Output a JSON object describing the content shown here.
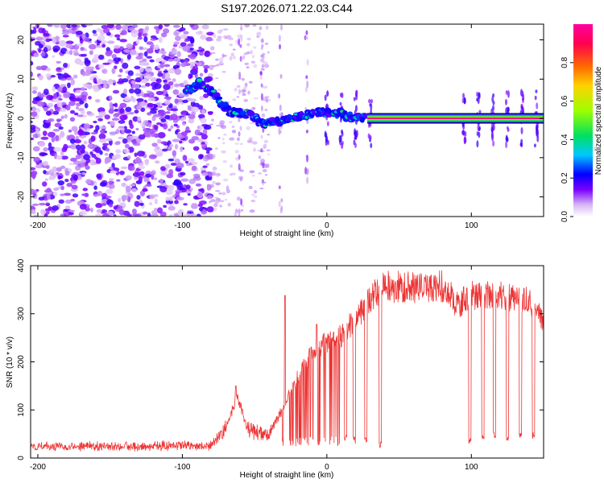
{
  "title": "S197.2026.071.22.03.C44",
  "chart_data": [
    {
      "type": "heatmap",
      "xlabel": "Height of straight line (km)",
      "ylabel": "Frequency (Hz)",
      "xlim": [
        -205,
        150
      ],
      "ylim": [
        -25,
        24
      ],
      "xticks": [
        -200,
        -100,
        0,
        100
      ],
      "yticks": [
        -20,
        -10,
        0,
        10,
        20
      ],
      "colorbar": {
        "label": "Normalized spectral amplitude",
        "range": [
          0,
          1
        ],
        "ticks": [
          "0.0",
          "0.2",
          "0.4",
          "0.6",
          "0.8"
        ],
        "colormap": [
          "#ffffff",
          "#d9b8f5",
          "#7b00ff",
          "#0000ff",
          "#00c8ff",
          "#00e060",
          "#9cff00",
          "#ffd200",
          "#ff6a00",
          "#ff0050",
          "#ff00a0"
        ]
      },
      "ridge": {
        "points": [
          {
            "x": -98,
            "y": 7
          },
          {
            "x": -88,
            "y": 9
          },
          {
            "x": -78,
            "y": 6
          },
          {
            "x": -68,
            "y": 2
          },
          {
            "x": -55,
            "y": 1
          },
          {
            "x": -45,
            "y": -1
          },
          {
            "x": -35,
            "y": -1
          },
          {
            "x": -25,
            "y": 0
          },
          {
            "x": -15,
            "y": 1
          },
          {
            "x": -5,
            "y": 1.5
          },
          {
            "x": 5,
            "y": 1.5
          },
          {
            "x": 15,
            "y": 0.5
          },
          {
            "x": 28,
            "y": 0
          }
        ],
        "steady_line": {
          "x_start": 28,
          "x_end": 150,
          "y": 0,
          "value": 0.95
        },
        "gap": [
          93,
          97
        ]
      },
      "noise_region": {
        "x_start": -205,
        "x_end": -80
      }
    },
    {
      "type": "line",
      "xlabel": "Height of straight line (km)",
      "ylabel": "SNR (10 * v/v)",
      "xlim": [
        -205,
        150
      ],
      "ylim": [
        0,
        400
      ],
      "xticks": [
        -200,
        -100,
        0,
        100
      ],
      "yticks": [
        0,
        100,
        200,
        300,
        400
      ],
      "series": [
        {
          "name": "SNR",
          "color": "#ee3333",
          "envelope": [
            {
              "x": -205,
              "y": 25
            },
            {
              "x": -80,
              "y": 25
            },
            {
              "x": -70,
              "y": 60
            },
            {
              "x": -62,
              "y": 130
            },
            {
              "x": -55,
              "y": 60
            },
            {
              "x": -45,
              "y": 50
            },
            {
              "x": -40,
              "y": 50
            },
            {
              "x": -33,
              "y": 90
            },
            {
              "x": -25,
              "y": 140
            },
            {
              "x": -15,
              "y": 200
            },
            {
              "x": -8,
              "y": 230
            },
            {
              "x": 0,
              "y": 240
            },
            {
              "x": 10,
              "y": 255
            },
            {
              "x": 20,
              "y": 290
            },
            {
              "x": 30,
              "y": 330
            },
            {
              "x": 40,
              "y": 355
            },
            {
              "x": 60,
              "y": 355
            },
            {
              "x": 80,
              "y": 355
            },
            {
              "x": 90,
              "y": 320
            },
            {
              "x": 100,
              "y": 335
            },
            {
              "x": 120,
              "y": 340
            },
            {
              "x": 140,
              "y": 330
            },
            {
              "x": 150,
              "y": 280
            }
          ],
          "spikes": [
            {
              "x": -29,
              "y": 338
            },
            {
              "x": -63,
              "y": 150
            },
            {
              "x": -7,
              "y": 278
            }
          ],
          "dropouts": [
            {
              "x": 13,
              "y": 35
            },
            {
              "x": 19,
              "y": 30
            },
            {
              "x": 27,
              "y": 30
            },
            {
              "x": 37,
              "y": 20
            },
            {
              "x": 99,
              "y": 30
            },
            {
              "x": 108,
              "y": 35
            },
            {
              "x": 116,
              "y": 40
            },
            {
              "x": 125,
              "y": 35
            },
            {
              "x": 134,
              "y": 40
            },
            {
              "x": 143,
              "y": 40
            }
          ],
          "dropout_band": {
            "x_start": -33,
            "x_end": 10,
            "y": 25
          }
        }
      ]
    }
  ]
}
